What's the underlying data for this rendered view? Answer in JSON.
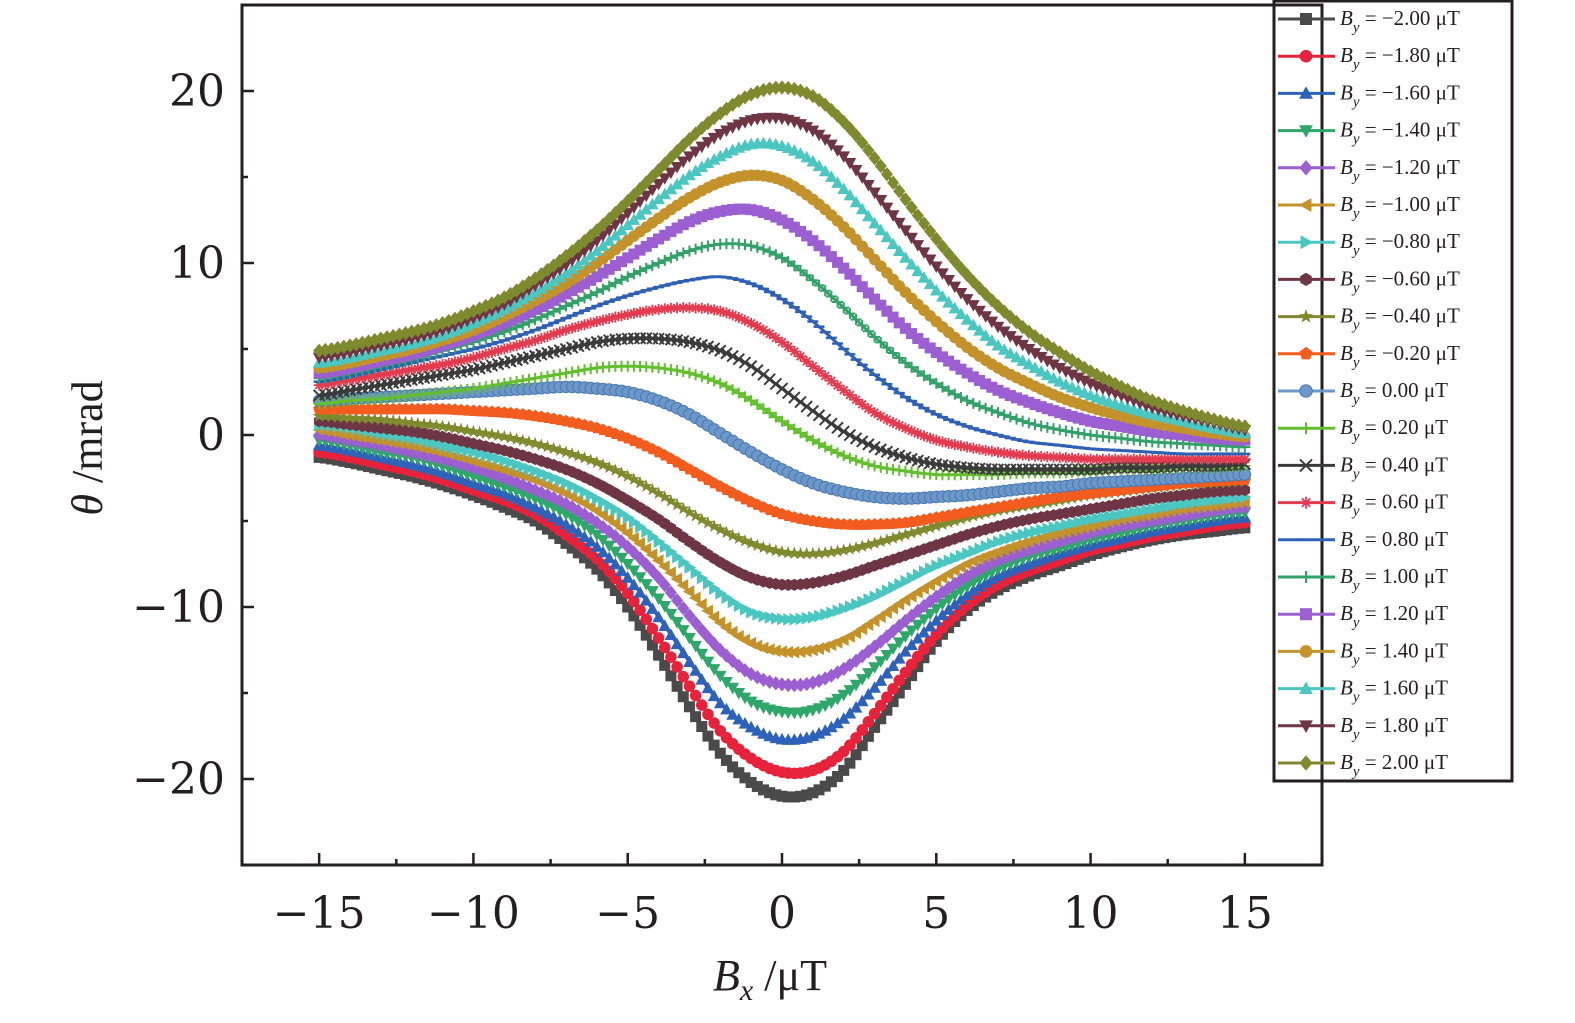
{
  "chart_data": {
    "type": "line",
    "xlabel": {
      "sym": "B",
      "sub": "x",
      "unit": " /μT"
    },
    "ylabel": {
      "sym": "θ",
      "unit": " /mrad"
    },
    "xlim": [
      -17.5,
      17.5
    ],
    "ylim": [
      -25,
      25
    ],
    "xticks": [
      -15,
      -10,
      -5,
      0,
      5,
      10,
      15
    ],
    "xtick_labels": [
      "−15",
      "−10",
      "−5",
      "0",
      "5",
      "10",
      "15"
    ],
    "yticks": [
      -20,
      -10,
      0,
      10,
      20
    ],
    "ytick_labels": [
      "−20",
      "−10",
      "0",
      "10",
      "20"
    ],
    "grid": false,
    "legend_position": "top-right",
    "legend_symbol": "B",
    "legend_sub": "y",
    "legend_unit": "μT",
    "x": [
      -15,
      -14,
      -13,
      -12,
      -11,
      -10,
      -9,
      -8,
      -7,
      -6,
      -5,
      -4,
      -3,
      -2,
      -1,
      0,
      1,
      2,
      3,
      4,
      5,
      6,
      7,
      8,
      9,
      10,
      11,
      12,
      13,
      14,
      15
    ],
    "series": [
      {
        "name": "−2.00",
        "color": "#4a4a4a",
        "marker": "square",
        "values": [
          -1.3,
          -1.6,
          -2.0,
          -2.4,
          -2.9,
          -3.5,
          -4.2,
          -5.0,
          -6.3,
          -7.8,
          -10.0,
          -12.8,
          -15.8,
          -18.5,
          -20.2,
          -21.0,
          -20.8,
          -19.5,
          -17.0,
          -14.5,
          -12.0,
          -10.2,
          -9.0,
          -8.2,
          -7.6,
          -7.0,
          -6.5,
          -6.1,
          -5.8,
          -5.6,
          -5.4
        ]
      },
      {
        "name": "−1.80",
        "color": "#e6233b",
        "marker": "circle",
        "values": [
          -1.0,
          -1.3,
          -1.7,
          -2.1,
          -2.6,
          -3.2,
          -3.8,
          -4.6,
          -5.8,
          -7.2,
          -9.2,
          -11.8,
          -14.6,
          -17.2,
          -18.8,
          -19.6,
          -19.5,
          -18.4,
          -16.2,
          -13.8,
          -11.6,
          -9.9,
          -8.7,
          -7.9,
          -7.3,
          -6.7,
          -6.3,
          -5.9,
          -5.6,
          -5.3,
          -5.1
        ]
      },
      {
        "name": "−1.60",
        "color": "#2d62b8",
        "marker": "triangle",
        "values": [
          -0.6,
          -0.9,
          -1.3,
          -1.7,
          -2.2,
          -2.8,
          -3.4,
          -4.2,
          -5.2,
          -6.5,
          -8.3,
          -10.6,
          -13.2,
          -15.6,
          -17.0,
          -17.7,
          -17.5,
          -16.5,
          -14.7,
          -12.6,
          -10.8,
          -9.3,
          -8.2,
          -7.5,
          -6.9,
          -6.4,
          -6.0,
          -5.6,
          -5.3,
          -5.0,
          -4.8
        ]
      },
      {
        "name": "−1.40",
        "color": "#2fa66a",
        "marker": "triangle-down",
        "values": [
          -0.3,
          -0.6,
          -1.0,
          -1.3,
          -1.8,
          -2.4,
          -3.0,
          -3.7,
          -4.6,
          -5.8,
          -7.5,
          -9.5,
          -11.8,
          -14.0,
          -15.5,
          -16.1,
          -16.0,
          -15.1,
          -13.5,
          -11.7,
          -10.1,
          -8.8,
          -7.8,
          -7.1,
          -6.6,
          -6.1,
          -5.7,
          -5.3,
          -5.0,
          -4.7,
          -4.5
        ]
      },
      {
        "name": "−1.20",
        "color": "#9b5fd1",
        "marker": "diamond",
        "values": [
          0.0,
          -0.3,
          -0.6,
          -1.0,
          -1.4,
          -1.9,
          -2.5,
          -3.2,
          -4.0,
          -5.1,
          -6.5,
          -8.3,
          -10.5,
          -12.5,
          -13.9,
          -14.5,
          -14.4,
          -13.6,
          -12.3,
          -10.8,
          -9.4,
          -8.2,
          -7.3,
          -6.7,
          -6.2,
          -5.7,
          -5.3,
          -5.0,
          -4.7,
          -4.4,
          -4.2
        ]
      },
      {
        "name": "−1.00",
        "color": "#c4922a",
        "marker": "triangle-left",
        "values": [
          0.3,
          0.0,
          -0.3,
          -0.6,
          -1.0,
          -1.5,
          -2.0,
          -2.6,
          -3.4,
          -4.4,
          -5.7,
          -7.3,
          -9.1,
          -10.9,
          -12.1,
          -12.6,
          -12.5,
          -11.9,
          -10.8,
          -9.6,
          -8.5,
          -7.5,
          -6.8,
          -6.2,
          -5.7,
          -5.3,
          -4.9,
          -4.6,
          -4.3,
          -4.1,
          -3.9
        ]
      },
      {
        "name": "−0.80",
        "color": "#4cc6c0",
        "marker": "triangle-right",
        "values": [
          0.6,
          0.4,
          0.1,
          -0.2,
          -0.6,
          -1.0,
          -1.5,
          -2.1,
          -2.8,
          -3.7,
          -4.8,
          -6.2,
          -7.7,
          -9.2,
          -10.3,
          -10.7,
          -10.6,
          -10.1,
          -9.4,
          -8.5,
          -7.6,
          -6.9,
          -6.2,
          -5.7,
          -5.3,
          -4.9,
          -4.6,
          -4.3,
          -4.0,
          -3.8,
          -3.6
        ]
      },
      {
        "name": "−0.60",
        "color": "#6e3545",
        "marker": "hexagon",
        "values": [
          0.8,
          0.6,
          0.4,
          0.2,
          -0.1,
          -0.5,
          -0.9,
          -1.4,
          -2.0,
          -2.8,
          -3.8,
          -4.9,
          -6.2,
          -7.4,
          -8.3,
          -8.7,
          -8.6,
          -8.2,
          -7.6,
          -7.0,
          -6.4,
          -5.8,
          -5.3,
          -4.9,
          -4.6,
          -4.3,
          -4.0,
          -3.7,
          -3.5,
          -3.3,
          -3.2
        ]
      },
      {
        "name": "−0.40",
        "color": "#7d8a2e",
        "marker": "star",
        "values": [
          1.1,
          1.0,
          0.9,
          0.7,
          0.5,
          0.2,
          -0.1,
          -0.5,
          -1.0,
          -1.6,
          -2.4,
          -3.4,
          -4.5,
          -5.5,
          -6.3,
          -6.8,
          -6.9,
          -6.7,
          -6.3,
          -5.8,
          -5.3,
          -4.8,
          -4.4,
          -4.1,
          -3.8,
          -3.5,
          -3.3,
          -3.1,
          -2.9,
          -2.8,
          -2.7
        ]
      },
      {
        "name": "−0.20",
        "color": "#f25c1f",
        "marker": "pentagon",
        "values": [
          1.5,
          1.5,
          1.5,
          1.5,
          1.5,
          1.4,
          1.3,
          1.1,
          0.8,
          0.4,
          -0.2,
          -1.0,
          -2.0,
          -3.0,
          -3.9,
          -4.6,
          -5.0,
          -5.2,
          -5.2,
          -5.1,
          -4.8,
          -4.5,
          -4.2,
          -3.9,
          -3.6,
          -3.4,
          -3.2,
          -3.0,
          -2.8,
          -2.7,
          -2.6
        ]
      },
      {
        "name": "0.00",
        "color": "#6c97c9",
        "marker": "ball",
        "values": [
          2.0,
          2.1,
          2.2,
          2.3,
          2.4,
          2.5,
          2.6,
          2.7,
          2.8,
          2.7,
          2.5,
          2.0,
          1.2,
          0.1,
          -1.0,
          -2.0,
          -2.8,
          -3.3,
          -3.6,
          -3.7,
          -3.6,
          -3.5,
          -3.3,
          -3.1,
          -3.0,
          -2.8,
          -2.7,
          -2.6,
          -2.5,
          -2.4,
          -2.3
        ]
      },
      {
        "name": "0.20",
        "color": "#63bf2f",
        "marker": "plus",
        "values": [
          1.8,
          2.0,
          2.1,
          2.3,
          2.5,
          2.7,
          3.0,
          3.3,
          3.6,
          3.9,
          4.0,
          3.9,
          3.6,
          3.0,
          2.0,
          0.8,
          -0.3,
          -1.2,
          -1.8,
          -2.1,
          -2.3,
          -2.3,
          -2.3,
          -2.2,
          -2.2,
          -2.1,
          -2.0,
          -2.0,
          -1.9,
          -1.9,
          -1.8
        ]
      },
      {
        "name": "0.40",
        "color": "#3b3b3b",
        "marker": "cross",
        "values": [
          2.3,
          2.6,
          2.9,
          3.2,
          3.5,
          3.8,
          4.2,
          4.6,
          5.0,
          5.4,
          5.6,
          5.6,
          5.4,
          4.9,
          4.0,
          2.7,
          1.4,
          0.2,
          -0.7,
          -1.3,
          -1.7,
          -1.9,
          -2.0,
          -2.0,
          -2.0,
          -2.0,
          -1.9,
          -1.9,
          -1.8,
          -1.8,
          -1.7
        ]
      },
      {
        "name": "0.60",
        "color": "#e23b4f",
        "marker": "asterisk",
        "values": [
          2.9,
          3.2,
          3.5,
          3.8,
          4.1,
          4.5,
          5.0,
          5.5,
          6.1,
          6.6,
          7.0,
          7.3,
          7.4,
          7.2,
          6.5,
          5.4,
          4.0,
          2.6,
          1.3,
          0.4,
          -0.3,
          -0.7,
          -1.0,
          -1.2,
          -1.3,
          -1.4,
          -1.4,
          -1.4,
          -1.4,
          -1.4,
          -1.4
        ]
      },
      {
        "name": "0.80",
        "color": "#2e60b5",
        "marker": "dash",
        "values": [
          3.1,
          3.4,
          3.8,
          4.2,
          4.6,
          5.0,
          5.5,
          6.1,
          6.8,
          7.5,
          8.1,
          8.6,
          9.0,
          9.2,
          8.8,
          7.9,
          6.6,
          5.0,
          3.5,
          2.2,
          1.2,
          0.5,
          0.0,
          -0.4,
          -0.6,
          -0.8,
          -0.9,
          -1.0,
          -1.1,
          -1.1,
          -1.1
        ]
      },
      {
        "name": "1.00",
        "color": "#34a06a",
        "marker": "plus",
        "values": [
          3.3,
          3.6,
          4.0,
          4.4,
          4.9,
          5.4,
          6.0,
          6.7,
          7.5,
          8.3,
          9.2,
          10.0,
          10.7,
          11.1,
          11.0,
          10.3,
          9.0,
          7.4,
          5.7,
          4.2,
          3.0,
          2.0,
          1.3,
          0.7,
          0.3,
          0.0,
          -0.2,
          -0.4,
          -0.5,
          -0.6,
          -0.7
        ]
      },
      {
        "name": "1.20",
        "color": "#9b5fd1",
        "marker": "square",
        "values": [
          3.6,
          3.9,
          4.3,
          4.7,
          5.2,
          5.8,
          6.5,
          7.3,
          8.2,
          9.2,
          10.3,
          11.4,
          12.4,
          13.0,
          13.1,
          12.5,
          11.3,
          9.7,
          7.9,
          6.2,
          4.8,
          3.6,
          2.6,
          1.9,
          1.3,
          0.8,
          0.5,
          0.2,
          0.0,
          -0.2,
          -0.3
        ]
      },
      {
        "name": "1.40",
        "color": "#c4922a",
        "marker": "circle",
        "values": [
          3.9,
          4.2,
          4.6,
          5.0,
          5.5,
          6.1,
          6.9,
          7.8,
          8.8,
          10.0,
          11.3,
          12.6,
          13.8,
          14.7,
          15.1,
          14.8,
          13.7,
          12.1,
          10.2,
          8.3,
          6.6,
          5.1,
          3.9,
          3.0,
          2.2,
          1.6,
          1.1,
          0.7,
          0.4,
          0.1,
          -0.1
        ]
      },
      {
        "name": "1.60",
        "color": "#4cc6c0",
        "marker": "triangle",
        "values": [
          4.2,
          4.5,
          4.9,
          5.3,
          5.8,
          6.5,
          7.3,
          8.3,
          9.4,
          10.7,
          12.2,
          13.7,
          15.1,
          16.2,
          16.9,
          16.8,
          15.9,
          14.3,
          12.3,
          10.3,
          8.4,
          6.7,
          5.2,
          4.1,
          3.1,
          2.3,
          1.7,
          1.2,
          0.8,
          0.4,
          0.1
        ]
      },
      {
        "name": "1.80",
        "color": "#6e3545",
        "marker": "triangle-down",
        "values": [
          4.5,
          4.8,
          5.2,
          5.6,
          6.1,
          6.8,
          7.6,
          8.7,
          9.9,
          11.3,
          12.9,
          14.6,
          16.2,
          17.5,
          18.3,
          18.4,
          17.7,
          16.2,
          14.1,
          11.9,
          9.8,
          7.9,
          6.3,
          5.0,
          3.9,
          3.0,
          2.3,
          1.6,
          1.1,
          0.7,
          0.3
        ]
      },
      {
        "name": "2.00",
        "color": "#7d8a2e",
        "marker": "diamond",
        "values": [
          4.9,
          5.2,
          5.6,
          6.0,
          6.5,
          7.2,
          8.0,
          9.1,
          10.4,
          11.9,
          13.6,
          15.4,
          17.2,
          18.7,
          19.8,
          20.2,
          19.7,
          18.2,
          16.1,
          13.7,
          11.4,
          9.3,
          7.5,
          6.0,
          4.8,
          3.7,
          2.8,
          2.0,
          1.4,
          0.9,
          0.5
        ]
      }
    ]
  }
}
